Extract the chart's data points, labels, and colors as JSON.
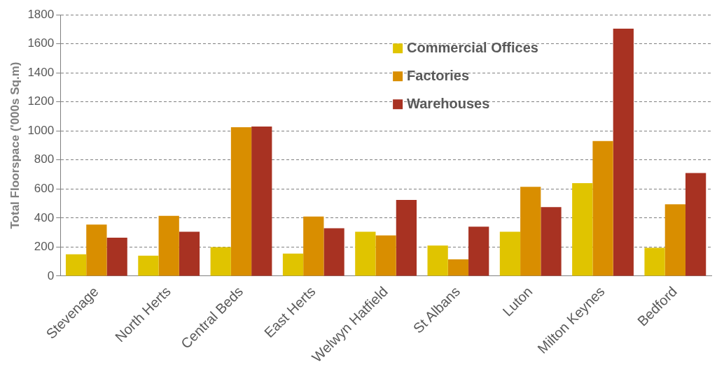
{
  "chart_data": {
    "type": "bar",
    "ylabel": "Total Floorspace ('000s Sq.m)",
    "categories": [
      "Stevenage",
      "North Herts",
      "Central Beds",
      "East Herts",
      "Welwyn Hatfield",
      "St Albans",
      "Luton",
      "Milton Keynes",
      "Bedford"
    ],
    "series": [
      {
        "name": "Commercial Offices",
        "color": "#e0c400",
        "values": [
          150,
          140,
          200,
          155,
          305,
          210,
          305,
          640,
          195
        ]
      },
      {
        "name": "Factories",
        "color": "#d98e00",
        "values": [
          355,
          415,
          1025,
          410,
          280,
          115,
          615,
          930,
          495
        ]
      },
      {
        "name": "Warehouses",
        "color": "#a83222",
        "values": [
          265,
          305,
          1030,
          330,
          525,
          340,
          475,
          1705,
          710
        ]
      }
    ],
    "ylim": [
      0,
      1800
    ],
    "yticks": [
      0,
      200,
      400,
      600,
      800,
      1000,
      1200,
      1400,
      1600,
      1800
    ],
    "grid": "y",
    "legend": "top"
  }
}
